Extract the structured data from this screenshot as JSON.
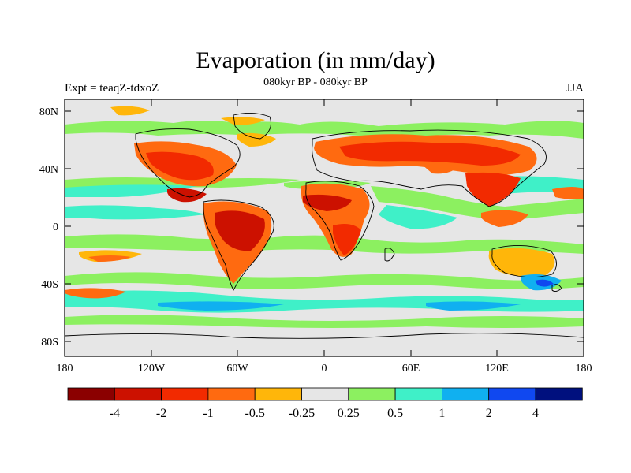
{
  "title": "Evaporation (in mm/day)",
  "subtitle": "080kyr BP - 080kyr BP",
  "left_label": "Expt = teaqZ-tdxoZ",
  "right_label": "JJA",
  "y_ticks": [
    "80N",
    "40N",
    "0",
    "40S",
    "80S"
  ],
  "x_ticks": [
    "180",
    "120W",
    "60W",
    "0",
    "60E",
    "120E",
    "180"
  ],
  "colorbar": {
    "colors": [
      "#8b0000",
      "#cc1100",
      "#f22a00",
      "#ff6a10",
      "#ffb60a",
      "#e6e6e6",
      "#8cf060",
      "#3ff0c8",
      "#10b0f0",
      "#1048f0",
      "#00107e"
    ],
    "labels": [
      "-4",
      "-2",
      "-1",
      "-0.5",
      "-0.25",
      "0.25",
      "0.5",
      "1",
      "2",
      "4"
    ]
  }
}
